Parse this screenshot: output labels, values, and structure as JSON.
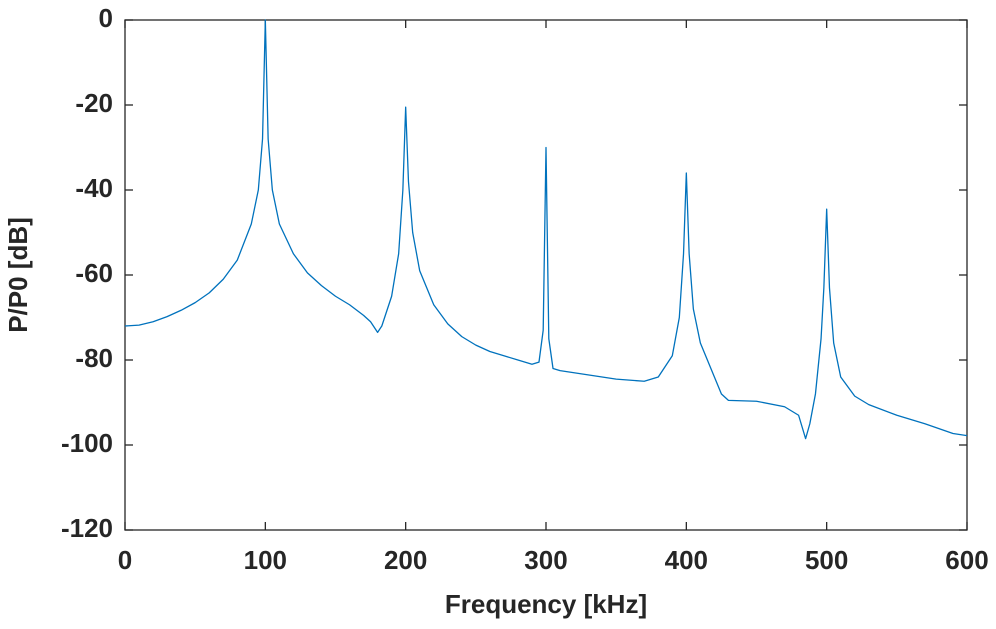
{
  "chart_data": {
    "type": "line",
    "xlabel": "Frequency [kHz]",
    "ylabel": "P/P0 [dB]",
    "x": [
      0,
      10,
      20,
      30,
      40,
      50,
      60,
      70,
      80,
      90,
      95,
      98,
      100,
      102,
      105,
      110,
      120,
      130,
      140,
      150,
      160,
      170,
      175,
      180,
      183,
      190,
      195,
      198,
      200,
      202,
      205,
      210,
      220,
      230,
      240,
      250,
      260,
      270,
      280,
      290,
      295,
      298,
      300,
      302,
      305,
      310,
      330,
      350,
      370,
      380,
      390,
      395,
      398,
      400,
      402,
      405,
      410,
      420,
      425,
      430,
      450,
      470,
      480,
      485,
      488,
      492,
      496,
      498,
      500,
      502,
      505,
      510,
      520,
      530,
      550,
      570,
      590,
      600
    ],
    "values": [
      -72,
      -71.8,
      -71,
      -69.8,
      -68.3,
      -66.5,
      -64.2,
      -61,
      -56.5,
      -48,
      -40,
      -28,
      0,
      -28,
      -40,
      -48,
      -55,
      -59.5,
      -62.5,
      -65,
      -67,
      -69.5,
      -71,
      -73.5,
      -72,
      -65,
      -55,
      -40,
      -20.5,
      -38,
      -50,
      -59,
      -67,
      -71.5,
      -74.5,
      -76.5,
      -78,
      -79,
      -80,
      -81,
      -80.5,
      -73,
      -30,
      -75,
      -82,
      -82.5,
      -83.5,
      -84.5,
      -85,
      -84,
      -79,
      -70,
      -55,
      -36,
      -55,
      -68,
      -76,
      -84,
      -88,
      -89.5,
      -89.7,
      -91,
      -93,
      -98.5,
      -95,
      -88,
      -75,
      -63,
      -44.5,
      -63,
      -76,
      -84,
      -88.5,
      -90.5,
      -93,
      -95,
      -97.3,
      -97.8
    ],
    "color": "#0072bd",
    "xlim": [
      0,
      600
    ],
    "xticks": [
      0,
      100,
      200,
      300,
      400,
      500,
      600
    ],
    "ylim": [
      -120,
      0
    ],
    "yticks": [
      -120,
      -100,
      -80,
      -60,
      -40,
      -20,
      0
    ]
  }
}
